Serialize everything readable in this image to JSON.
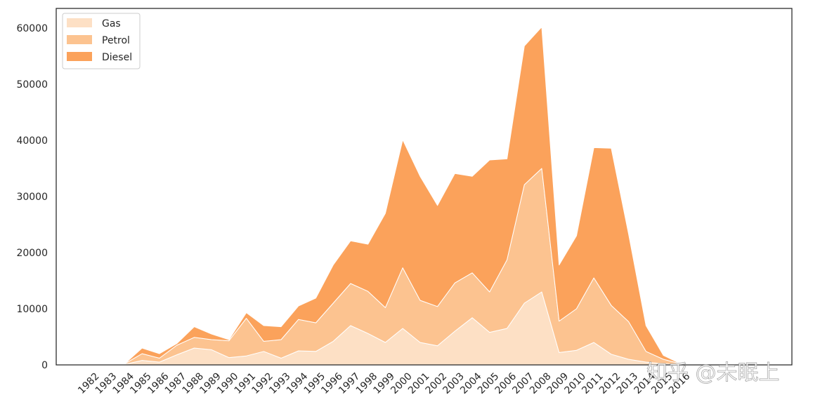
{
  "chart_data": {
    "type": "area",
    "stacked": true,
    "categories": [
      "1982",
      "1983",
      "1984",
      "1985",
      "1986",
      "1987",
      "1988",
      "1989",
      "1990",
      "1991",
      "1992",
      "1993",
      "1994",
      "1995",
      "1996",
      "1997",
      "1998",
      "1999",
      "2000",
      "2001",
      "2002",
      "2003",
      "2004",
      "2005",
      "2006",
      "2007",
      "2008",
      "2009",
      "2010",
      "2011",
      "2012",
      "2013",
      "2014",
      "2015",
      "2016"
    ],
    "series": [
      {
        "name": "Gas",
        "color": "#fde0c5",
        "values": [
          0,
          0,
          100,
          800,
          500,
          1800,
          3000,
          2700,
          1300,
          1600,
          2400,
          1200,
          2500,
          2400,
          4200,
          7000,
          5600,
          4000,
          6500,
          4000,
          3400,
          6000,
          8400,
          5800,
          6500,
          11000,
          13000,
          2200,
          2600,
          4000,
          1900,
          1000,
          500,
          200,
          0
        ]
      },
      {
        "name": "Petrol",
        "color": "#fcc390",
        "values": [
          0,
          0,
          100,
          1200,
          700,
          1700,
          1900,
          1800,
          3000,
          6700,
          1800,
          3300,
          5600,
          5100,
          6800,
          7500,
          7500,
          6200,
          10800,
          7500,
          7000,
          8600,
          8000,
          7200,
          12200,
          21100,
          22000,
          5600,
          7400,
          11500,
          8700,
          6700,
          1900,
          800,
          200
        ]
      },
      {
        "name": "Diesel",
        "color": "#fba25b",
        "values": [
          0,
          0,
          0,
          1000,
          800,
          300,
          1900,
          1000,
          200,
          1000,
          2800,
          2300,
          2400,
          4400,
          6800,
          7600,
          8400,
          16800,
          22800,
          22100,
          18000,
          19500,
          17200,
          23500,
          18000,
          24700,
          25200,
          10000,
          13000,
          23200,
          28000,
          15600,
          4600,
          700,
          0
        ]
      }
    ],
    "ylim": [
      0,
      63500
    ],
    "yticks": [
      0,
      10000,
      20000,
      30000,
      40000,
      50000,
      60000
    ],
    "ytick_labels": [
      "0",
      "10000",
      "20000",
      "30000",
      "40000",
      "50000",
      "60000"
    ],
    "title": "",
    "xlabel": "",
    "ylabel": "",
    "legend": "top-left",
    "grid": false
  },
  "watermark": "知乎 @未眠上"
}
